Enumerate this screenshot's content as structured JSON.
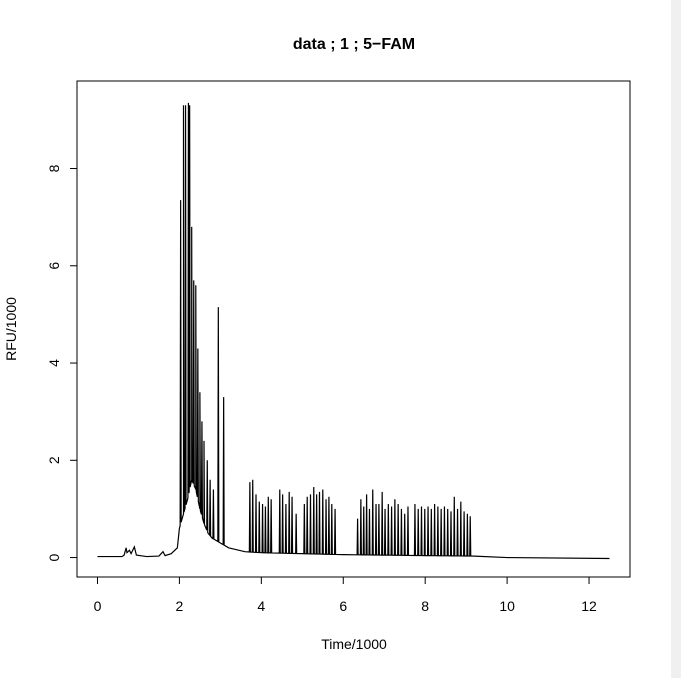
{
  "chart_data": {
    "type": "line",
    "title": "data ; 1 ; 5−FAM",
    "xlabel": "Time/1000",
    "ylabel": "RFU/1000",
    "xlim": [
      -0.5,
      13
    ],
    "ylim": [
      -0.4,
      9.8
    ],
    "x_ticks": [
      "0",
      "2",
      "4",
      "6",
      "8",
      "10",
      "12"
    ],
    "y_ticks": [
      "0",
      "2",
      "4",
      "6",
      "8"
    ],
    "grid": false,
    "legend": "none",
    "line_color": "#000000",
    "baseline": [
      [
        0.0,
        0.02
      ],
      [
        0.6,
        0.02
      ],
      [
        0.65,
        0.05
      ],
      [
        0.7,
        0.2
      ],
      [
        0.72,
        0.1
      ],
      [
        0.78,
        0.15
      ],
      [
        0.82,
        0.08
      ],
      [
        0.9,
        0.22
      ],
      [
        0.95,
        0.05
      ],
      [
        1.2,
        0.02
      ],
      [
        1.5,
        0.03
      ],
      [
        1.6,
        0.12
      ],
      [
        1.65,
        0.04
      ],
      [
        1.8,
        0.08
      ],
      [
        1.95,
        0.2
      ],
      [
        2.0,
        0.6
      ],
      [
        2.1,
        0.9
      ],
      [
        2.2,
        1.2
      ],
      [
        2.3,
        1.6
      ],
      [
        2.4,
        1.4
      ],
      [
        2.5,
        1.0
      ],
      [
        2.6,
        0.7
      ],
      [
        2.7,
        0.5
      ],
      [
        2.8,
        0.4
      ],
      [
        3.0,
        0.3
      ],
      [
        3.2,
        0.2
      ],
      [
        3.6,
        0.12
      ],
      [
        4.0,
        0.1
      ],
      [
        5.0,
        0.08
      ],
      [
        6.0,
        0.06
      ],
      [
        7.0,
        0.05
      ],
      [
        8.0,
        0.04
      ],
      [
        9.2,
        0.03
      ],
      [
        10.0,
        0.0
      ],
      [
        12.5,
        -0.02
      ]
    ],
    "peaks": [
      {
        "x": 2.03,
        "y": 7.35
      },
      {
        "x": 2.1,
        "y": 9.3
      },
      {
        "x": 2.15,
        "y": 9.3
      },
      {
        "x": 2.22,
        "y": 9.35
      },
      {
        "x": 2.25,
        "y": 9.3
      },
      {
        "x": 2.3,
        "y": 6.8
      },
      {
        "x": 2.35,
        "y": 5.7
      },
      {
        "x": 2.4,
        "y": 5.6
      },
      {
        "x": 2.45,
        "y": 4.3
      },
      {
        "x": 2.5,
        "y": 3.4
      },
      {
        "x": 2.55,
        "y": 2.8
      },
      {
        "x": 2.6,
        "y": 2.4
      },
      {
        "x": 2.68,
        "y": 2.0
      },
      {
        "x": 2.75,
        "y": 1.6
      },
      {
        "x": 2.83,
        "y": 1.4
      },
      {
        "x": 2.95,
        "y": 5.15
      },
      {
        "x": 3.08,
        "y": 3.3
      },
      {
        "x": 3.72,
        "y": 1.55
      },
      {
        "x": 3.79,
        "y": 1.6
      },
      {
        "x": 3.87,
        "y": 1.3
      },
      {
        "x": 3.95,
        "y": 1.15
      },
      {
        "x": 4.03,
        "y": 1.1
      },
      {
        "x": 4.1,
        "y": 1.05
      },
      {
        "x": 4.17,
        "y": 1.25
      },
      {
        "x": 4.24,
        "y": 1.2
      },
      {
        "x": 4.45,
        "y": 1.4
      },
      {
        "x": 4.52,
        "y": 1.3
      },
      {
        "x": 4.6,
        "y": 1.1
      },
      {
        "x": 4.68,
        "y": 1.35
      },
      {
        "x": 4.75,
        "y": 1.25
      },
      {
        "x": 4.85,
        "y": 0.9
      },
      {
        "x": 5.05,
        "y": 1.1
      },
      {
        "x": 5.12,
        "y": 1.25
      },
      {
        "x": 5.2,
        "y": 1.3
      },
      {
        "x": 5.28,
        "y": 1.45
      },
      {
        "x": 5.35,
        "y": 1.3
      },
      {
        "x": 5.42,
        "y": 1.35
      },
      {
        "x": 5.5,
        "y": 1.4
      },
      {
        "x": 5.58,
        "y": 1.2
      },
      {
        "x": 5.65,
        "y": 1.25
      },
      {
        "x": 5.72,
        "y": 1.1
      },
      {
        "x": 5.8,
        "y": 1.0
      },
      {
        "x": 6.35,
        "y": 0.8
      },
      {
        "x": 6.43,
        "y": 1.2
      },
      {
        "x": 6.5,
        "y": 1.05
      },
      {
        "x": 6.57,
        "y": 1.3
      },
      {
        "x": 6.64,
        "y": 1.0
      },
      {
        "x": 6.72,
        "y": 1.4
      },
      {
        "x": 6.8,
        "y": 1.1
      },
      {
        "x": 6.87,
        "y": 1.1
      },
      {
        "x": 6.95,
        "y": 1.35
      },
      {
        "x": 7.02,
        "y": 1.0
      },
      {
        "x": 7.1,
        "y": 1.1
      },
      {
        "x": 7.18,
        "y": 1.05
      },
      {
        "x": 7.26,
        "y": 1.2
      },
      {
        "x": 7.34,
        "y": 1.1
      },
      {
        "x": 7.42,
        "y": 1.0
      },
      {
        "x": 7.5,
        "y": 0.9
      },
      {
        "x": 7.58,
        "y": 1.05
      },
      {
        "x": 7.75,
        "y": 1.1
      },
      {
        "x": 7.83,
        "y": 1.0
      },
      {
        "x": 7.91,
        "y": 1.05
      },
      {
        "x": 7.99,
        "y": 1.0
      },
      {
        "x": 8.07,
        "y": 1.05
      },
      {
        "x": 8.15,
        "y": 1.0
      },
      {
        "x": 8.23,
        "y": 1.1
      },
      {
        "x": 8.31,
        "y": 1.05
      },
      {
        "x": 8.39,
        "y": 1.0
      },
      {
        "x": 8.47,
        "y": 1.05
      },
      {
        "x": 8.55,
        "y": 1.0
      },
      {
        "x": 8.63,
        "y": 0.95
      },
      {
        "x": 8.71,
        "y": 1.25
      },
      {
        "x": 8.79,
        "y": 1.0
      },
      {
        "x": 8.87,
        "y": 1.15
      },
      {
        "x": 8.95,
        "y": 0.95
      },
      {
        "x": 9.03,
        "y": 0.9
      },
      {
        "x": 9.1,
        "y": 0.85
      }
    ]
  }
}
